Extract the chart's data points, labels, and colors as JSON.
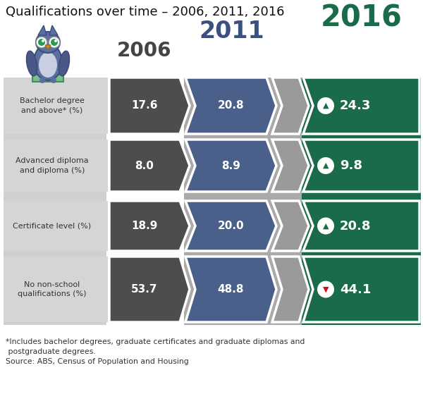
{
  "title": "Qualifications over time – 2006, 2011, 2016",
  "categories": [
    "Bachelor degree\nand above* (%)",
    "Advanced diploma\nand diploma (%)",
    "Certificate level (%)",
    "No non-school\nqualifications (%)"
  ],
  "values_2006": [
    17.6,
    8.0,
    18.9,
    53.7
  ],
  "values_2011": [
    20.8,
    8.9,
    20.0,
    48.8
  ],
  "values_2016": [
    24.3,
    9.8,
    20.8,
    44.1
  ],
  "trend_up": [
    true,
    true,
    true,
    false
  ],
  "color_2006": "#4d4d4d",
  "color_2011": "#4a5f8a",
  "color_2016": "#1a6b4a",
  "color_gray": "#9a9a9a",
  "color_label_bg": "#cccccc",
  "year_2006_color": "#444444",
  "year_2011_color": "#3a5080",
  "year_2016_color": "#1a6b4a",
  "footnote_line1": "*Includes bachelor degrees, graduate certificates and graduate diplomas and",
  "footnote_line2": " postgraduate degrees.",
  "footnote_line3": "Source: ABS, Census of Population and Housing",
  "background_color": "#ffffff"
}
